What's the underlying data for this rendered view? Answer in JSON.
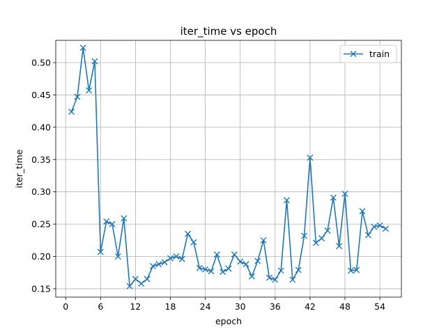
{
  "chart_data": {
    "type": "line",
    "title": "iter_time vs epoch",
    "xlabel": "epoch",
    "ylabel": "iter_time",
    "xlim": [
      -1.7,
      57.7
    ],
    "ylim": [
      0.137,
      0.5345
    ],
    "xticks": [
      0,
      6,
      12,
      18,
      24,
      30,
      36,
      42,
      48,
      54
    ],
    "xtick_labels": [
      "0",
      "6",
      "12",
      "18",
      "24",
      "30",
      "36",
      "42",
      "48",
      "54"
    ],
    "yticks": [
      0.15,
      0.2,
      0.25,
      0.3,
      0.35,
      0.4,
      0.45,
      0.5
    ],
    "ytick_labels": [
      "0.15",
      "0.20",
      "0.25",
      "0.30",
      "0.35",
      "0.40",
      "0.45",
      "0.50"
    ],
    "grid": true,
    "legend_position": "top-right",
    "series": [
      {
        "name": "train",
        "color": "#1f77b4",
        "marker": "x",
        "x": [
          1,
          2,
          3,
          4,
          5,
          6,
          7,
          8,
          9,
          10,
          11,
          12,
          13,
          14,
          15,
          16,
          17,
          18,
          19,
          20,
          21,
          22,
          23,
          24,
          25,
          26,
          27,
          28,
          29,
          30,
          31,
          32,
          33,
          34,
          35,
          36,
          37,
          38,
          39,
          40,
          41,
          42,
          43,
          44,
          45,
          46,
          47,
          48,
          49,
          50,
          51,
          52,
          53,
          54,
          55
        ],
        "values": [
          0.424,
          0.447,
          0.523,
          0.457,
          0.502,
          0.207,
          0.254,
          0.25,
          0.2,
          0.259,
          0.154,
          0.165,
          0.158,
          0.165,
          0.185,
          0.188,
          0.191,
          0.197,
          0.2,
          0.196,
          0.235,
          0.222,
          0.182,
          0.18,
          0.177,
          0.203,
          0.176,
          0.181,
          0.203,
          0.192,
          0.188,
          0.169,
          0.193,
          0.225,
          0.167,
          0.164,
          0.178,
          0.287,
          0.164,
          0.179,
          0.232,
          0.353,
          0.221,
          0.228,
          0.24,
          0.291,
          0.216,
          0.297,
          0.178,
          0.179,
          0.27,
          0.233,
          0.246,
          0.248,
          0.243
        ]
      }
    ]
  }
}
